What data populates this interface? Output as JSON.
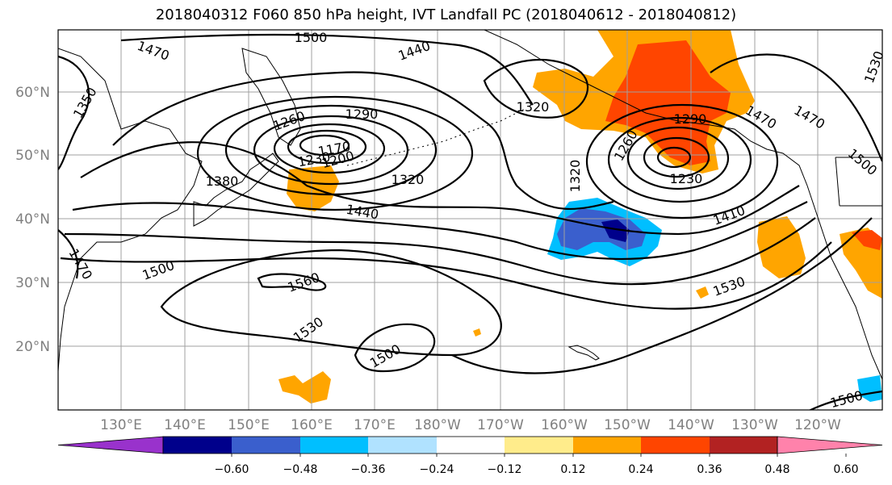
{
  "map": {
    "title": "2018040312 F060 850 hPa height, IVT Landfall PC (2018040612 - 2018040812)",
    "latitude_ticks": [
      "20°N",
      "30°N",
      "40°N",
      "50°N",
      "60°N"
    ],
    "longitude_ticks": [
      "130°E",
      "140°E",
      "150°E",
      "160°E",
      "170°E",
      "180°W",
      "170°W",
      "160°W",
      "150°W",
      "140°W",
      "130°W",
      "120°W"
    ],
    "contour_labels": [
      "1500",
      "1470",
      "1440",
      "1350",
      "1470",
      "1260",
      "1290",
      "1170",
      "1200",
      "1230",
      "1320",
      "1380",
      "1320",
      "1260",
      "1290",
      "1230",
      "1320",
      "1440",
      "1410",
      "1470",
      "1500",
      "1530",
      "1470",
      "1500",
      "1560",
      "1530",
      "1500",
      "1530",
      "1500"
    ],
    "colorbar": {
      "tick_labels": [
        "−0.60",
        "−0.48",
        "−0.36",
        "−0.24",
        "−0.12",
        "0.12",
        "0.24",
        "0.36",
        "0.48",
        "0.60"
      ],
      "colors": [
        "#9932cc",
        "#00008b",
        "#3a5fcd",
        "#00bfff",
        "#b0e2ff",
        "#ffffff",
        "#ffec8b",
        "#ffa500",
        "#ff4500",
        "#b22222",
        "#ff82ab"
      ]
    },
    "shading": {
      "positive_light": "#ffec8b",
      "positive_mid": "#ffa500",
      "positive_high": "#ff4500",
      "negative_light": "#00bfff",
      "negative_mid": "#3a5fcd",
      "negative_high": "#00008b"
    }
  }
}
